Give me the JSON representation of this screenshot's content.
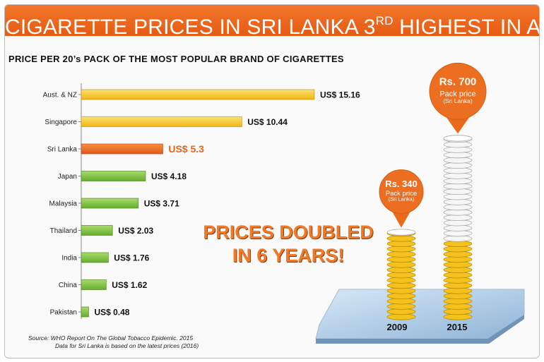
{
  "banner": {
    "title": "CIGARETTE PRICES IN SRI LANKA 3",
    "title_sup": "RD",
    "title_end": " HIGHEST IN ASIA!"
  },
  "source": {
    "line1": "Source: WHO Report On The Global Tobacco Epidemic. 2015",
    "line2": "Data for Sri Lanka  is  based on the latest prices (2016)"
  },
  "callout": {
    "line1": "PRICES DOUBLED",
    "line2": "IN 6 YEARS!"
  },
  "colors": {
    "accent": "#e8641c",
    "gold": "#f3c21f",
    "green": "#7dc241",
    "orange": "#ea6a1c"
  },
  "chart_data": [
    {
      "type": "bar",
      "orientation": "horizontal",
      "title": "PRICE PER 20’s PACK OF THE MOST POPULAR BRAND OF CIGARETTES",
      "categories": [
        "Aust. & NZ",
        "Singapore",
        "Sri Lanka",
        "Japan",
        "Malaysia",
        "Thailand",
        "India",
        "China",
        "Pakistan"
      ],
      "values": [
        15.16,
        10.44,
        5.3,
        4.18,
        3.71,
        2.03,
        1.76,
        1.62,
        0.48
      ],
      "value_labels": [
        "US$ 15.16",
        "US$ 10.44",
        "US$ 5.3",
        "US$ 4.18",
        "US$ 3.71",
        "US$ 2.03",
        "US$ 1.76",
        "US$ 1.62",
        "US$ 0.48"
      ],
      "bar_colors": [
        "gold",
        "gold",
        "orange",
        "green",
        "green",
        "green",
        "green",
        "green",
        "green"
      ],
      "highlight": "Sri Lanka",
      "xlim": [
        0,
        15.16
      ],
      "grid": false
    },
    {
      "type": "bar",
      "style": "coin-stack",
      "categories": [
        "2009",
        "2015"
      ],
      "values": [
        340,
        700
      ],
      "value_labels": [
        "Rs. 340",
        "Rs. 700"
      ],
      "sub_label_1": "Pack price",
      "sub_label_2": "(Sri Lanka)",
      "ylim": [
        0,
        700
      ]
    }
  ]
}
